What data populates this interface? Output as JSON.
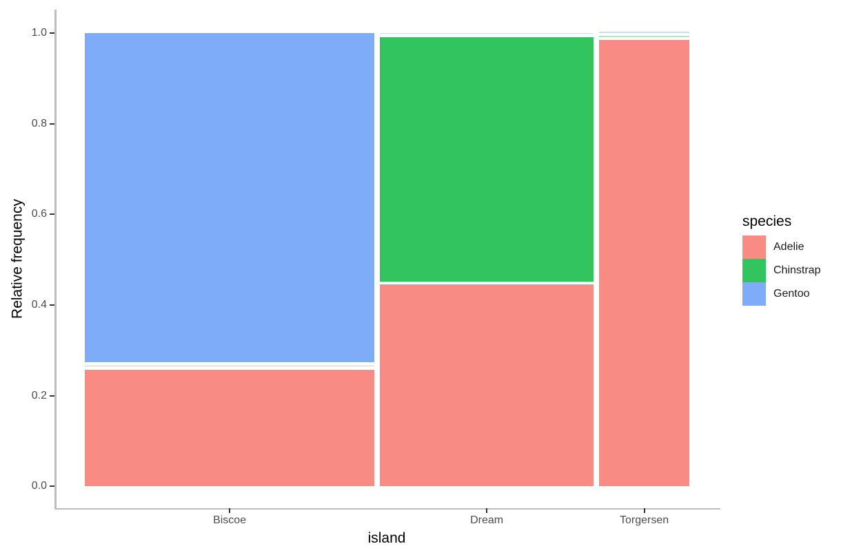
{
  "figure": {
    "xlabel": "island",
    "ylabel": "Relative frequency",
    "legend_title": "species"
  },
  "chart_data": {
    "type": "mosaic",
    "title": "",
    "xlabel": "island",
    "ylabel": "Relative frequency",
    "x_categories": [
      "Biscoe",
      "Dream",
      "Torgersen"
    ],
    "x_proportions": [
      0.488,
      0.36,
      0.152
    ],
    "stack_order": [
      "Adelie",
      "Chinstrap",
      "Gentoo"
    ],
    "series": [
      {
        "island": "Biscoe",
        "fractions": {
          "Adelie": 0.262,
          "Chinstrap": 0.0,
          "Gentoo": 0.738
        }
      },
      {
        "island": "Dream",
        "fractions": {
          "Adelie": 0.452,
          "Chinstrap": 0.548,
          "Gentoo": 0.0
        }
      },
      {
        "island": "Torgersen",
        "fractions": {
          "Adelie": 1.0,
          "Chinstrap": 0.0,
          "Gentoo": 0.0
        }
      }
    ],
    "y_tick_values": [
      0.0,
      0.2,
      0.4,
      0.6,
      0.8,
      1.0
    ],
    "y_tick_labels": [
      "0.0",
      "0.2",
      "0.4",
      "0.6",
      "0.8",
      "1.0"
    ],
    "ylim": [
      0,
      1
    ],
    "grid": false,
    "legend_position": "right",
    "legend": {
      "title": "species",
      "entries": [
        {
          "label": "Adelie",
          "color": "#F88C84"
        },
        {
          "label": "Chinstrap",
          "color": "#32C45F"
        },
        {
          "label": "Gentoo",
          "color": "#7FACF8"
        }
      ]
    },
    "colors": {
      "Adelie": "#F88C84",
      "Chinstrap": "#32C45F",
      "Gentoo": "#7FACF8"
    }
  },
  "style_colors": {
    "background": "#FFFFFF",
    "axis_line": "#BDBDBD",
    "tick_mark": "#333333",
    "tick_label": "#4D4D4D",
    "axis_title": "#000000",
    "legend_text": "#1A1A1A"
  }
}
